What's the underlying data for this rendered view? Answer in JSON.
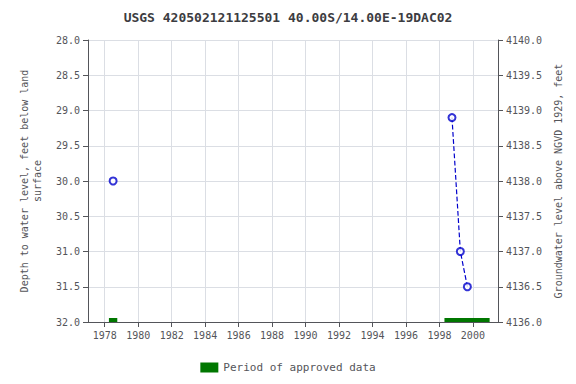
{
  "chart_data": {
    "type": "scatter",
    "title": "USGS 420502121125501 40.00S/14.00E-19DAC02",
    "ylabel": "Depth to water level, feet below land\nsurface",
    "y2label": "Groundwater level above NGVD 1929, feet",
    "xlim": [
      1977.0,
      2001.5
    ],
    "xticks": [
      1978,
      1980,
      1982,
      1984,
      1986,
      1988,
      1990,
      1992,
      1994,
      1996,
      1998,
      2000
    ],
    "ylim": [
      32.0,
      28.0
    ],
    "yticks": [
      {
        "value": 28.0,
        "label": "28.0"
      },
      28.5,
      {
        "value": 29.0,
        "label": "29.0"
      },
      29.5,
      {
        "value": 30.0,
        "label": "30.0"
      },
      30.5,
      {
        "value": 31.0,
        "label": "31.0"
      },
      31.5,
      {
        "value": 32.0,
        "label": "32.0"
      }
    ],
    "y2lim": [
      4136.0,
      4140.0
    ],
    "y2ticks": [
      {
        "value": 4136.0,
        "label": "4136.0"
      },
      4136.5,
      {
        "value": 4137.0,
        "label": "4137.0"
      },
      4137.5,
      {
        "value": 4138.0,
        "label": "4138.0"
      },
      4138.5,
      {
        "value": 4139.0,
        "label": "4139.0"
      },
      4139.5,
      {
        "value": 4140.0,
        "label": "4140.0"
      }
    ],
    "grid": true,
    "legend": "bottom",
    "series": [
      {
        "type": "scatter",
        "color": "#0000CC",
        "marker": "circle",
        "x": [
          1978.5,
          1998.75,
          1999.25,
          1999.67
        ],
        "values": [
          30.0,
          29.1,
          31.0,
          31.5
        ]
      },
      {
        "type": "line",
        "color": "#0000CC",
        "line_style": "dashed",
        "x": [
          1998.75,
          1999.25,
          1999.67
        ],
        "values": [
          29.1,
          31.0,
          31.5
        ]
      },
      {
        "type": "span",
        "name": "Period of approved data",
        "color": "#007700",
        "ranges": [
          [
            1978.25,
            1978.75
          ],
          [
            1998.3,
            2001.0
          ]
        ]
      }
    ]
  }
}
